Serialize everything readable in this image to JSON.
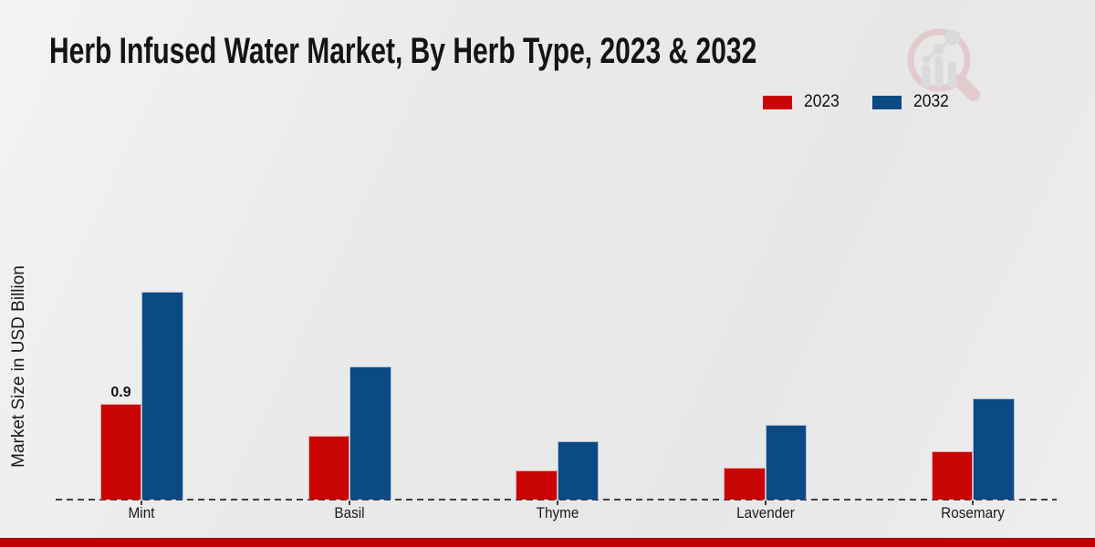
{
  "chart_data": {
    "type": "bar",
    "title": "Herb Infused Water Market, By Herb Type, 2023 & 2032",
    "ylabel": "Market Size in USD Billion",
    "xlabel": "",
    "categories": [
      "Mint",
      "Basil",
      "Thyme",
      "Lavender",
      "Rosemary"
    ],
    "series": [
      {
        "name": "2023",
        "color": "#c90505",
        "values": [
          0.9,
          0.6,
          0.27,
          0.3,
          0.45
        ]
      },
      {
        "name": "2032",
        "color": "#0b4a85",
        "values": [
          1.95,
          1.25,
          0.55,
          0.7,
          0.95
        ]
      }
    ],
    "annotations": [
      {
        "category": "Mint",
        "series": "2023",
        "text": "0.9"
      }
    ],
    "ylim": [
      0,
      2.3
    ],
    "grid": false,
    "legend_position": "top-right",
    "y_axis_tick_labels_visible": false,
    "baseline_style": "dashed"
  },
  "icons": {
    "watermark": "magnifier-bar-chart-logo"
  },
  "footer": {
    "accent_color": "#c00000"
  }
}
